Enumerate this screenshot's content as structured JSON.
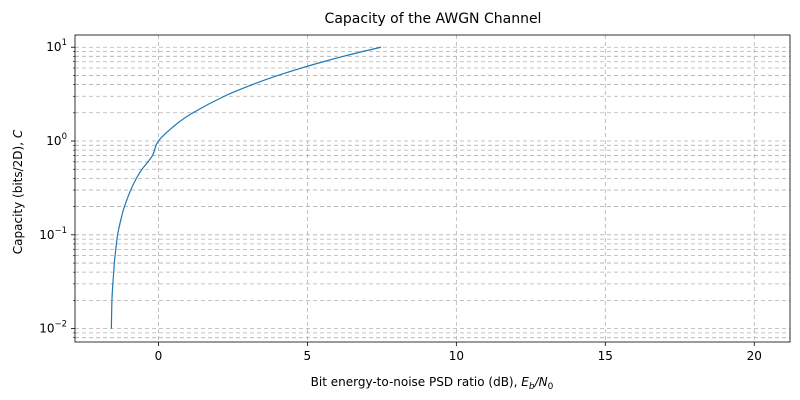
{
  "chart_data": {
    "type": "line",
    "title": "Capacity of the AWGN Channel",
    "xlabel": {
      "text": "Bit energy-to-noise PSD ratio (dB), ",
      "math": {
        "a": "E",
        "a_sub": "b",
        "slash": "/",
        "b": "N",
        "b_sub": "0"
      }
    },
    "ylabel": {
      "text": "Capacity (bits/2D), ",
      "math": "C"
    },
    "xlim": [
      -2.8,
      21.2
    ],
    "ylim": [
      0.0072,
      13.5
    ],
    "yscale": "log",
    "grid": true,
    "x_ticks": [
      0,
      5,
      10,
      15,
      20
    ],
    "x_tick_labels": [
      "0",
      "5",
      "10",
      "15",
      "20"
    ],
    "y_major_ticks": [
      0.01,
      0.1,
      1,
      10
    ],
    "y_tick_labels": [
      {
        "base": "10",
        "exp": "−2"
      },
      {
        "base": "10",
        "exp": "−1"
      },
      {
        "base": "10",
        "exp": "0"
      },
      {
        "base": "10",
        "exp": "1"
      }
    ],
    "series": [
      {
        "color": "#1f77b4",
        "points": [
          [
            -1.58,
            0.01
          ],
          [
            -1.56,
            0.02
          ],
          [
            -1.53,
            0.03
          ],
          [
            -1.5,
            0.04
          ],
          [
            -1.48,
            0.05
          ],
          [
            -1.43,
            0.07
          ],
          [
            -1.37,
            0.1
          ],
          [
            -1.25,
            0.15
          ],
          [
            -1.14,
            0.2
          ],
          [
            -0.93,
            0.3
          ],
          [
            -0.74,
            0.4
          ],
          [
            -0.55,
            0.5
          ],
          [
            -0.2,
            0.7
          ],
          [
            0.0,
            1.0
          ],
          [
            0.59,
            1.5
          ],
          [
            1.16,
            2.0
          ],
          [
            2.21,
            3.0
          ],
          [
            3.16,
            4.0
          ],
          [
            4.01,
            5.0
          ],
          [
            4.8,
            6.0
          ],
          [
            5.53,
            7.0
          ],
          [
            6.21,
            8.0
          ],
          [
            6.86,
            9.0
          ],
          [
            7.47,
            10.0
          ]
        ]
      }
    ]
  }
}
